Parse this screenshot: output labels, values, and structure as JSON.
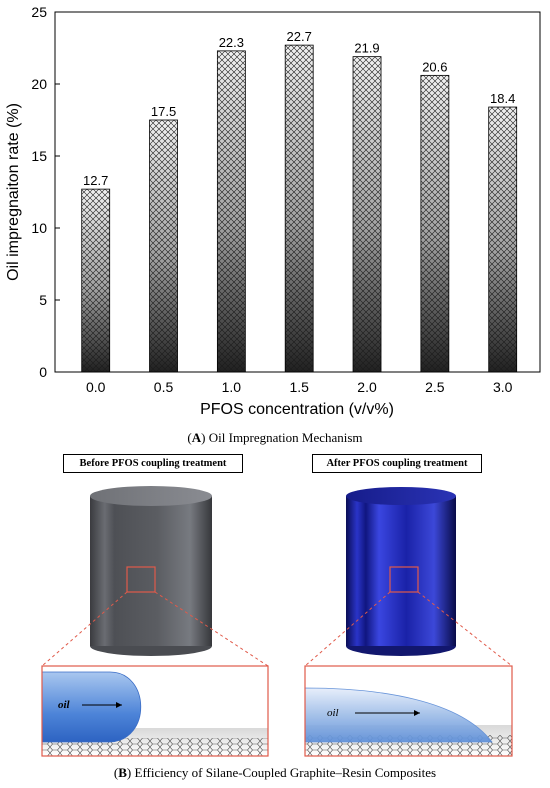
{
  "chart_data": {
    "type": "bar",
    "categories": [
      "0.0",
      "0.5",
      "1.0",
      "1.5",
      "2.0",
      "2.5",
      "3.0"
    ],
    "values": [
      12.7,
      17.5,
      22.3,
      22.7,
      21.9,
      20.6,
      18.4
    ],
    "value_labels": [
      "12.7",
      "17.5",
      "22.3",
      "22.7",
      "21.9",
      "20.6",
      "18.4"
    ],
    "xlabel": "PFOS concentration (v/v%)",
    "ylabel": "Oil impregnaiton rate (%)",
    "ylim": [
      0,
      25
    ],
    "yticks": [
      "0",
      "5",
      "10",
      "15",
      "20",
      "25"
    ],
    "grid": false,
    "bar_fill": "crosshatch, light gray at top to dark at bottom"
  },
  "captions": {
    "a_letter": "A",
    "a_text": " Oil Impregnation Mechanism",
    "b_letter": "B",
    "b_text": " Efficiency of Silane-Coupled Graphite–Resin Composites"
  },
  "illustration": {
    "before_label": "Before PFOS coupling treatment",
    "after_label": "After PFOS coupling treatment",
    "oil_left": "oil",
    "oil_right": "oil",
    "colors": {
      "cylinder_before": "#55575c",
      "cylinder_after": "#1a1f9a",
      "zoom_frame": "#e05a4a",
      "droplet": "#4a7fd4"
    }
  }
}
